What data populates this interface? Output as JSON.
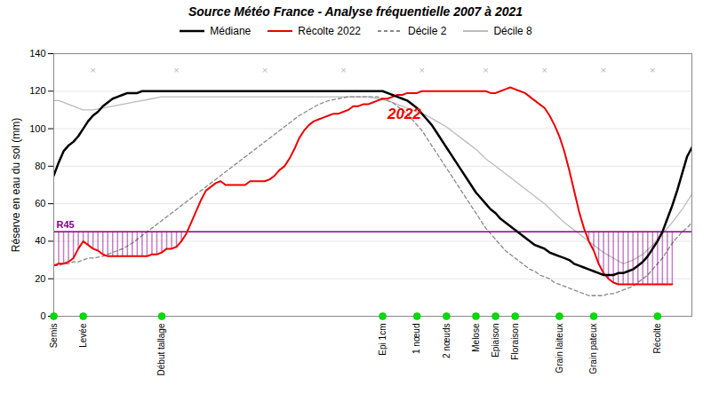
{
  "chart_data": {
    "type": "line",
    "title": "Source Météo France - Analyse fréquentielle 2007 à 2021",
    "ylabel": "Réserve en eau du sol (mm)",
    "xlim": [
      0,
      130
    ],
    "xticks": [],
    "tick_labels": "y",
    "ylim": [
      0,
      140
    ],
    "yticks": [
      0,
      20,
      40,
      60,
      80,
      100,
      120,
      140
    ],
    "grid": true,
    "legend": "top",
    "series": [
      {
        "name": "Médiane",
        "color": "black",
        "line_style": "solid",
        "x": [
          0,
          1,
          2,
          3,
          4,
          5,
          6,
          7,
          8,
          9,
          10,
          11,
          12,
          13,
          14,
          15,
          16,
          17,
          18,
          19,
          20,
          22,
          24,
          26,
          28,
          30,
          32,
          34,
          36,
          38,
          40,
          42,
          44,
          46,
          48,
          50,
          52,
          54,
          56,
          58,
          60,
          62,
          64,
          66,
          67,
          68,
          69,
          70,
          71,
          72,
          73,
          74,
          75,
          76,
          77,
          78,
          79,
          80,
          81,
          82,
          83,
          84,
          85,
          86,
          87,
          88,
          89,
          90,
          91,
          92,
          93,
          94,
          95,
          96,
          97,
          98,
          99,
          100,
          101,
          102,
          103,
          104,
          105,
          106,
          107,
          108,
          109,
          110,
          111,
          112,
          113,
          114,
          115,
          116,
          117,
          118,
          119,
          120,
          121,
          122,
          123,
          124,
          125,
          126,
          127,
          128,
          129,
          130
        ],
        "values": [
          75,
          82,
          88,
          91,
          93,
          96,
          100,
          104,
          107,
          109,
          112,
          114,
          116,
          117,
          118,
          119,
          119,
          119,
          120,
          120,
          120,
          120,
          120,
          120,
          120,
          120,
          120,
          120,
          120,
          120,
          120,
          120,
          120,
          120,
          120,
          120,
          120,
          120,
          120,
          120,
          120,
          120,
          120,
          120,
          120,
          119,
          118,
          117,
          116,
          115,
          113,
          111,
          108,
          105,
          102,
          98,
          94,
          90,
          86,
          82,
          78,
          74,
          70,
          66,
          63,
          60,
          57,
          55,
          52,
          50,
          48,
          46,
          44,
          42,
          40,
          38,
          37,
          36,
          34,
          33,
          32,
          31,
          30,
          28,
          27,
          26,
          25,
          24,
          23,
          22,
          22,
          22,
          23,
          23,
          24,
          25,
          27,
          29,
          32,
          36,
          40,
          45,
          52,
          59,
          67,
          76,
          85,
          90
        ]
      },
      {
        "name": "Récolte 2022",
        "color": "#ee0000",
        "line_style": "solid",
        "x": [
          0,
          1,
          2,
          3,
          4,
          5,
          6,
          7,
          8,
          9,
          10,
          11,
          12,
          13,
          14,
          15,
          16,
          17,
          18,
          19,
          20,
          21,
          22,
          23,
          24,
          25,
          26,
          27,
          28,
          29,
          30,
          31,
          32,
          33,
          34,
          35,
          36,
          37,
          38,
          39,
          40,
          41,
          42,
          43,
          44,
          45,
          46,
          47,
          48,
          49,
          50,
          51,
          52,
          53,
          54,
          55,
          56,
          57,
          58,
          59,
          60,
          61,
          62,
          63,
          64,
          65,
          66,
          67,
          68,
          69,
          70,
          71,
          72,
          73,
          74,
          75,
          76,
          77,
          78,
          79,
          80,
          81,
          82,
          83,
          84,
          85,
          86,
          87,
          88,
          89,
          90,
          91,
          92,
          93,
          94,
          95,
          96,
          97,
          98,
          99,
          100,
          101,
          102,
          103,
          104,
          105,
          106,
          107,
          108,
          109,
          110,
          111,
          112,
          113,
          114,
          115,
          116,
          117,
          118,
          119,
          120,
          121,
          122,
          123,
          124,
          125,
          126
        ],
        "values": [
          27,
          28,
          28,
          29,
          31,
          36,
          40,
          38,
          36,
          35,
          33,
          32,
          32,
          32,
          32,
          32,
          32,
          32,
          32,
          32,
          33,
          33,
          34,
          36,
          36,
          37,
          40,
          44,
          50,
          56,
          62,
          67,
          69,
          71,
          72,
          70,
          70,
          70,
          70,
          70,
          72,
          72,
          72,
          72,
          73,
          75,
          78,
          80,
          84,
          89,
          95,
          99,
          102,
          104,
          105,
          106,
          107,
          108,
          108,
          109,
          110,
          112,
          112,
          113,
          113,
          114,
          115,
          116,
          116,
          117,
          118,
          118,
          119,
          119,
          119,
          120,
          120,
          120,
          120,
          120,
          120,
          120,
          120,
          120,
          120,
          120,
          120,
          120,
          120,
          119,
          119,
          120,
          121,
          122,
          121,
          120,
          119,
          117,
          115,
          113,
          111,
          107,
          102,
          96,
          88,
          78,
          67,
          56,
          47,
          40,
          35,
          28,
          23,
          20,
          18,
          17,
          17,
          17,
          17,
          17,
          17,
          17,
          17,
          17,
          17,
          17,
          17
        ]
      },
      {
        "name": "Décile 2",
        "color": "#888888",
        "line_style": "dashed",
        "x": [
          0,
          1,
          2,
          3,
          4,
          5,
          6,
          7,
          8,
          10,
          12,
          14,
          16,
          18,
          20,
          22,
          24,
          26,
          28,
          30,
          32,
          34,
          36,
          38,
          40,
          42,
          44,
          46,
          48,
          50,
          52,
          54,
          56,
          58,
          60,
          62,
          64,
          66,
          67,
          68,
          69,
          70,
          71,
          72,
          73,
          74,
          75,
          76,
          77,
          78,
          79,
          80,
          81,
          82,
          83,
          84,
          85,
          86,
          87,
          88,
          89,
          90,
          91,
          92,
          93,
          94,
          95,
          96,
          97,
          98,
          99,
          100,
          101,
          102,
          103,
          104,
          105,
          106,
          107,
          108,
          109,
          110,
          111,
          112,
          113,
          114,
          115,
          116,
          117,
          118,
          119,
          120,
          121,
          122,
          123,
          124,
          125,
          126,
          127,
          128,
          129,
          130
        ],
        "values": [
          27,
          27,
          28,
          28,
          29,
          29,
          30,
          31,
          31,
          32,
          34,
          36,
          39,
          43,
          47,
          51,
          55,
          59,
          63,
          67,
          71,
          75,
          79,
          83,
          87,
          91,
          95,
          99,
          103,
          107,
          110,
          113,
          115,
          116,
          117,
          117,
          117,
          117,
          116,
          115,
          114,
          112,
          110,
          108,
          105,
          102,
          99,
          95,
          91,
          87,
          83,
          79,
          75,
          71,
          67,
          63,
          59,
          55,
          51,
          47,
          44,
          41,
          38,
          35,
          33,
          31,
          29,
          27,
          25,
          24,
          22,
          21,
          20,
          18,
          17,
          16,
          15,
          14,
          13,
          12,
          11,
          11,
          11,
          11,
          12,
          12,
          13,
          14,
          15,
          16,
          18,
          20,
          22,
          25,
          28,
          31,
          35,
          39,
          42,
          45,
          47,
          50
        ]
      },
      {
        "name": "Décile 8",
        "color": "#bbbbbb",
        "line_style": "solid",
        "x": [
          0,
          1,
          2,
          3,
          4,
          5,
          6,
          7,
          8,
          10,
          12,
          14,
          16,
          18,
          20,
          22,
          24,
          26,
          28,
          30,
          32,
          34,
          36,
          38,
          40,
          42,
          44,
          46,
          48,
          50,
          52,
          54,
          56,
          58,
          60,
          62,
          64,
          66,
          68,
          70,
          72,
          74,
          76,
          78,
          80,
          82,
          84,
          86,
          88,
          90,
          92,
          94,
          96,
          98,
          100,
          102,
          104,
          106,
          108,
          110,
          112,
          114,
          116,
          118,
          120,
          122,
          124,
          126,
          128,
          130
        ],
        "values": [
          115,
          115,
          114,
          113,
          112,
          111,
          110,
          110,
          110,
          111,
          112,
          113,
          114,
          115,
          116,
          117,
          117,
          117,
          117,
          117,
          117,
          117,
          117,
          117,
          117,
          117,
          117,
          117,
          117,
          117,
          117,
          117,
          117,
          117,
          117,
          117,
          117,
          116,
          115,
          113,
          111,
          109,
          107,
          104,
          101,
          97,
          93,
          89,
          84,
          80,
          76,
          72,
          68,
          64,
          60,
          55,
          50,
          46,
          42,
          38,
          34,
          31,
          28,
          30,
          33,
          38,
          44,
          50,
          57,
          65
        ]
      }
    ],
    "hline": {
      "value": 45,
      "label": "R45",
      "color": "#880088",
      "shade_series": "Récolte 2022"
    },
    "annotations": [
      {
        "text": "2022",
        "x": 68,
        "y": 108,
        "color": "#ee0000"
      }
    ],
    "markers": {
      "text": "×",
      "color": "#bbbbbb",
      "y": 131,
      "x": [
        8,
        25,
        43,
        59,
        75,
        88,
        100,
        112,
        122
      ]
    },
    "stages": {
      "color": "#00dd00",
      "labels": [
        "Semis",
        "Levée",
        "Début tallage",
        "Epi 1cm",
        "1 nœud",
        "2 nœuds",
        "Melose",
        "Epiaison",
        "Floraison",
        "Grain laiteux",
        "Grain pateux",
        "Récolte"
      ],
      "positions": [
        0,
        6,
        22,
        67,
        74,
        80,
        86,
        90,
        94,
        103,
        110,
        123
      ]
    }
  }
}
